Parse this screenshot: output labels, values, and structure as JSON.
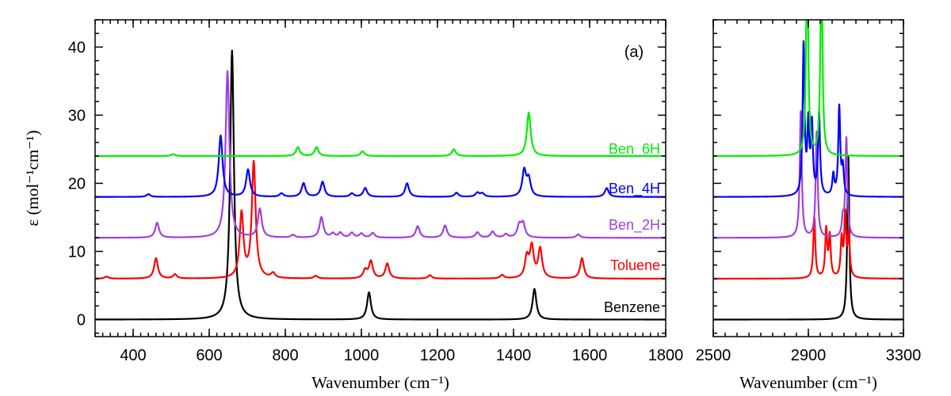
{
  "chart_data": [
    {
      "type": "line",
      "panel_label": "(a)",
      "xlabel": "Wavenumber (cm⁻¹)",
      "ylabel": "ε (mol⁻¹cm⁻¹)",
      "xlim": [
        300,
        1800
      ],
      "ylim": [
        -2.5,
        44
      ],
      "x_ticks": [
        400,
        600,
        800,
        1000,
        1200,
        1400,
        1600,
        1800
      ],
      "y_ticks": [
        0,
        10,
        20,
        30,
        40
      ],
      "peak_width": 6,
      "series": [
        {
          "name": "Benzene",
          "color": "#000000",
          "offset": 0,
          "peaks": [
            [
              660,
              39.5
            ],
            [
              1020,
              4.0
            ],
            [
              1455,
              4.5
            ]
          ]
        },
        {
          "name": "Toluene",
          "color": "#ff0000",
          "offset": 6,
          "peaks": [
            [
              330,
              0.3
            ],
            [
              460,
              3.0
            ],
            [
              510,
              0.6
            ],
            [
              685,
              9.5
            ],
            [
              717,
              17.0
            ],
            [
              768,
              0.7
            ],
            [
              880,
              0.4
            ],
            [
              1010,
              1.2
            ],
            [
              1025,
              2.5
            ],
            [
              1068,
              2.2
            ],
            [
              1180,
              0.5
            ],
            [
              1370,
              0.5
            ],
            [
              1435,
              3.0
            ],
            [
              1448,
              4.5
            ],
            [
              1470,
              4.3
            ],
            [
              1580,
              3.0
            ]
          ]
        },
        {
          "name": "Ben_2H",
          "color": "#a040e0",
          "offset": 12,
          "peaks": [
            [
              463,
              2.2
            ],
            [
              648,
              24.5
            ],
            [
              733,
              4.2
            ],
            [
              820,
              0.4
            ],
            [
              895,
              3.0
            ],
            [
              925,
              0.6
            ],
            [
              945,
              0.7
            ],
            [
              975,
              0.7
            ],
            [
              1000,
              0.6
            ],
            [
              1030,
              0.7
            ],
            [
              1148,
              1.7
            ],
            [
              1220,
              1.8
            ],
            [
              1305,
              0.8
            ],
            [
              1345,
              0.9
            ],
            [
              1380,
              0.5
            ],
            [
              1415,
              1.8
            ],
            [
              1425,
              2.0
            ],
            [
              1570,
              0.5
            ]
          ]
        },
        {
          "name": "Ben_4H",
          "color": "#0000ff",
          "offset": 18,
          "peaks": [
            [
              440,
              0.4
            ],
            [
              630,
              9.0
            ],
            [
              702,
              4.0
            ],
            [
              790,
              0.5
            ],
            [
              848,
              2.0
            ],
            [
              898,
              2.2
            ],
            [
              975,
              0.5
            ],
            [
              1010,
              1.3
            ],
            [
              1120,
              2.0
            ],
            [
              1250,
              0.6
            ],
            [
              1305,
              0.6
            ],
            [
              1318,
              0.5
            ],
            [
              1428,
              3.8
            ],
            [
              1440,
              2.5
            ],
            [
              1645,
              1.3
            ]
          ]
        },
        {
          "name": "Ben_6H",
          "color": "#00ee00",
          "offset": 24,
          "peaks": [
            [
              505,
              0.3
            ],
            [
              833,
              1.3
            ],
            [
              882,
              1.3
            ],
            [
              1003,
              0.7
            ],
            [
              1243,
              1.0
            ],
            [
              1440,
              6.4
            ]
          ]
        }
      ]
    },
    {
      "type": "line",
      "xlabel": "Wavenumber (cm⁻¹)",
      "xlim": [
        2500,
        3300
      ],
      "ylim": [
        -2.5,
        44
      ],
      "x_ticks": [
        2500,
        2900,
        3300
      ],
      "peak_width": 5,
      "series": [
        {
          "name": "Benzene",
          "color": "#000000",
          "offset": 0,
          "peaks": [
            [
              3068,
              24.0
            ]
          ]
        },
        {
          "name": "Toluene",
          "color": "#ff0000",
          "offset": 6,
          "peaks": [
            [
              2925,
              9.0
            ],
            [
              2975,
              7.0
            ],
            [
              2990,
              6.0
            ],
            [
              3040,
              5.5
            ],
            [
              3055,
              9.0
            ],
            [
              3070,
              6.0
            ]
          ]
        },
        {
          "name": "Ben_2H",
          "color": "#a040e0",
          "offset": 12,
          "peaks": [
            [
              2868,
              18.5
            ],
            [
              2935,
              15.5
            ],
            [
              3045,
              2.5
            ],
            [
              3060,
              14.5
            ]
          ]
        },
        {
          "name": "Ben_4H",
          "color": "#0000ff",
          "offset": 18,
          "peaks": [
            [
              2880,
              22.0
            ],
            [
              2900,
              10.0
            ],
            [
              2915,
              10.0
            ],
            [
              2945,
              12.0
            ],
            [
              3005,
              3.0
            ],
            [
              3030,
              13.0
            ],
            [
              3045,
              4.0
            ]
          ]
        },
        {
          "name": "Ben_6H",
          "color": "#00ee00",
          "offset": 24,
          "peaks": [
            [
              2895,
              32.0
            ],
            [
              2955,
              30.0
            ]
          ]
        }
      ]
    }
  ]
}
